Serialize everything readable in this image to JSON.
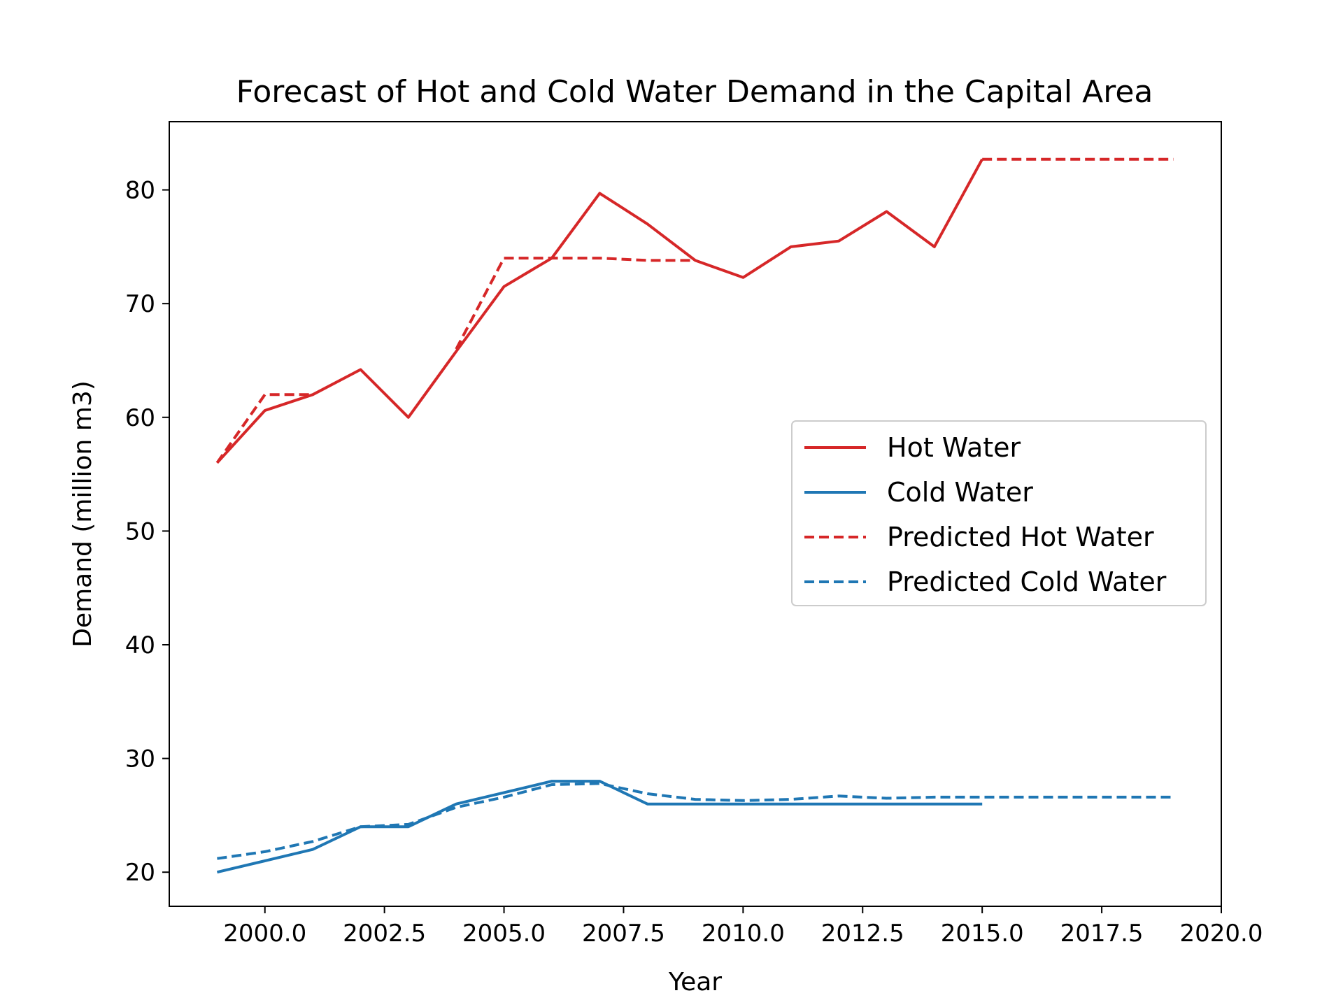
{
  "chart_data": {
    "type": "line",
    "title": "Forecast of Hot and Cold Water Demand in the Capital Area",
    "xlabel": "Year",
    "ylabel": "Demand (million m3)",
    "xlim": [
      1998.0,
      2020.0
    ],
    "ylim": [
      17.0,
      86.0
    ],
    "xticks": [
      2000.0,
      2002.5,
      2005.0,
      2007.5,
      2010.0,
      2012.5,
      2015.0,
      2017.5,
      2020.0
    ],
    "xtick_labels": [
      "2000.0",
      "2002.5",
      "2005.0",
      "2007.5",
      "2010.0",
      "2012.5",
      "2015.0",
      "2017.5",
      "2020.0"
    ],
    "yticks": [
      20,
      30,
      40,
      50,
      60,
      70,
      80
    ],
    "ytick_labels": [
      "20",
      "30",
      "40",
      "50",
      "60",
      "70",
      "80"
    ],
    "grid": false,
    "legend_position": "center-right",
    "series": [
      {
        "name": "Hot Water",
        "color": "#d62728",
        "style": "solid",
        "x": [
          1999,
          2000,
          2001,
          2002,
          2003,
          2004,
          2005,
          2006,
          2007,
          2008,
          2009,
          2010,
          2011,
          2012,
          2013,
          2014,
          2015
        ],
        "values": [
          56.0,
          60.6,
          62.0,
          64.2,
          60.0,
          65.8,
          71.5,
          74.0,
          79.7,
          77.0,
          73.8,
          72.3,
          75.0,
          75.5,
          78.1,
          75.0,
          82.7
        ]
      },
      {
        "name": "Cold Water",
        "color": "#1f77b4",
        "style": "solid",
        "x": [
          1999,
          2000,
          2001,
          2002,
          2003,
          2004,
          2005,
          2006,
          2007,
          2008,
          2009,
          2010,
          2011,
          2012,
          2013,
          2014,
          2015
        ],
        "values": [
          20.0,
          21.0,
          22.0,
          24.0,
          24.0,
          26.0,
          27.0,
          28.0,
          28.0,
          26.0,
          26.0,
          26.0,
          26.0,
          26.0,
          26.0,
          26.0,
          26.0
        ]
      },
      {
        "name": "Predicted Hot Water",
        "color": "#d62728",
        "style": "dashed",
        "x": [
          1999,
          2000,
          2001,
          2002,
          2003,
          2004,
          2005,
          2006,
          2007,
          2008,
          2009,
          2010,
          2011,
          2012,
          2013,
          2014,
          2015,
          2016,
          2017,
          2018,
          2019
        ],
        "values": [
          56.0,
          62.0,
          62.0,
          null,
          null,
          66.0,
          74.0,
          74.0,
          74.0,
          73.8,
          73.8,
          null,
          null,
          null,
          null,
          null,
          82.7,
          82.7,
          82.7,
          82.7,
          82.7
        ]
      },
      {
        "name": "Predicted Cold Water",
        "color": "#1f77b4",
        "style": "dashed",
        "x": [
          1999,
          2000,
          2001,
          2002,
          2003,
          2004,
          2005,
          2006,
          2007,
          2008,
          2009,
          2010,
          2011,
          2012,
          2013,
          2014,
          2015,
          2016,
          2017,
          2018,
          2019
        ],
        "values": [
          21.2,
          21.8,
          22.7,
          24.0,
          24.2,
          25.7,
          26.6,
          27.7,
          27.8,
          26.9,
          26.4,
          26.3,
          26.4,
          26.7,
          26.5,
          26.6,
          26.6,
          26.6,
          26.6,
          26.6,
          26.6
        ]
      }
    ]
  }
}
